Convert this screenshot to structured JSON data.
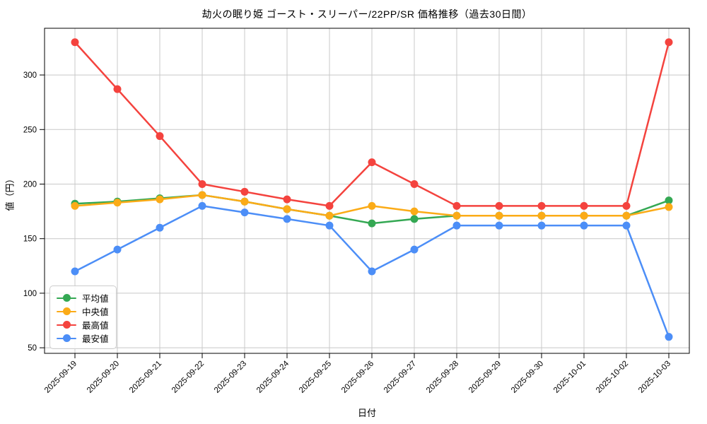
{
  "chart_data": {
    "type": "line",
    "title": "劫火の眠り姫 ゴースト・スリーパー/22PP/SR 価格推移（過去30日間）",
    "xlabel": "日付",
    "ylabel": "値（円）",
    "x": [
      "2025-09-19",
      "2025-09-20",
      "2025-09-21",
      "2025-09-22",
      "2025-09-23",
      "2025-09-24",
      "2025-09-25",
      "2025-09-26",
      "2025-09-27",
      "2025-09-28",
      "2025-09-29",
      "2025-09-30",
      "2025-10-01",
      "2025-10-02",
      "2025-10-03"
    ],
    "series": [
      {
        "key": "average",
        "name": "平均値",
        "color": "#34a853",
        "values": [
          182,
          184,
          187,
          190,
          184,
          177,
          171,
          164,
          168,
          171,
          171,
          171,
          171,
          171,
          185
        ]
      },
      {
        "key": "median",
        "name": "中央値",
        "color": "#fbab17",
        "values": [
          180,
          183,
          186,
          190,
          184,
          177,
          171,
          180,
          175,
          171,
          171,
          171,
          171,
          171,
          179
        ]
      },
      {
        "key": "max",
        "name": "最高値",
        "color": "#f4433e",
        "values": [
          330,
          287,
          244,
          200,
          193,
          186,
          180,
          220,
          200,
          180,
          180,
          180,
          180,
          180,
          330
        ]
      },
      {
        "key": "min",
        "name": "最安値",
        "color": "#4c8ef7",
        "values": [
          120,
          140,
          160,
          180,
          174,
          168,
          162,
          120,
          140,
          162,
          162,
          162,
          162,
          162,
          60
        ]
      }
    ],
    "yticks": [
      50,
      100,
      150,
      200,
      250,
      300
    ],
    "ylim": [
      44.9,
      342.8
    ],
    "grid": true,
    "grid_color": "#c8c8c8",
    "spine_color": "#000000",
    "legend_position": "lower left"
  }
}
